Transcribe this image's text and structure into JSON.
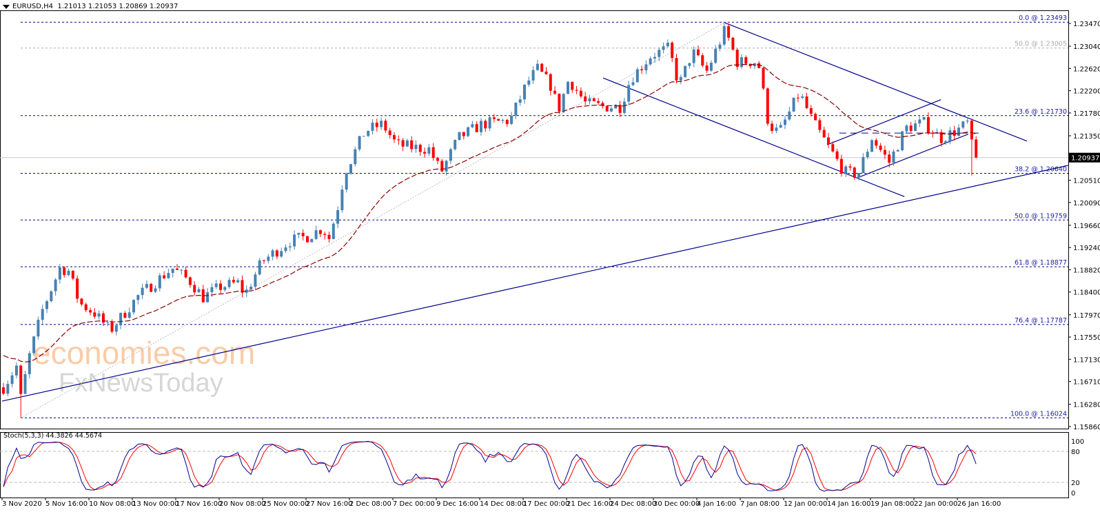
{
  "header": {
    "symbol": "EURUSD,H4",
    "ohlc": "1.21013 1.21053 1.20869 1.20937"
  },
  "stoch_label": "Stoch(5,3,3) 44.3826 44.5674",
  "watermark": {
    "line1": "economies.com",
    "line2": "FxNewsToday"
  },
  "colors": {
    "up": "#4682b4",
    "down": "#ff0000",
    "ma": "#8b0000",
    "fib": "#00008b",
    "trend": "#00008b",
    "stoch_k": "#00008b",
    "stoch_d": "#ff0000",
    "price_line": "#c8c8c8"
  },
  "chart_data": {
    "type": "candlestick",
    "title": "EURUSD,H4",
    "bars": 225,
    "ylim": [
      1.1586,
      1.2347
    ],
    "price_ticks": [
      "1.23470",
      "1.23040",
      "1.22620",
      "1.22200",
      "1.21780",
      "1.21350",
      "1.20510",
      "1.20090",
      "1.19660",
      "1.19240",
      "1.18820",
      "1.18400",
      "1.17970",
      "1.17550",
      "1.17130",
      "1.16710",
      "1.16280",
      "1.15860"
    ],
    "current_price": "1.20937",
    "time_labels": [
      "3 Nov 2020",
      "5 Nov 16:00",
      "10 Nov 08:00",
      "13 Nov 00:00",
      "17 Nov 16:00",
      "20 Nov 08:00",
      "25 Nov 00:00",
      "27 Nov 16:00",
      "2 Dec 08:00",
      "7 Dec 00:00",
      "9 Dec 16:00",
      "14 Dec 08:00",
      "17 Dec 00:00",
      "21 Dec 16:00",
      "24 Dec 08:00",
      "30 Dec 00:00",
      "4 Jan 16:00",
      "7 Jan 08:00",
      "12 Jan 00:00",
      "14 Jan 16:00",
      "19 Jan 08:00",
      "22 Jan 00:00",
      "26 Jan 16:00"
    ],
    "close_waypoints": [
      [
        0,
        1.166
      ],
      [
        3,
        1.17
      ],
      [
        4,
        1.164
      ],
      [
        6,
        1.172
      ],
      [
        9,
        1.1806
      ],
      [
        13,
        1.1885
      ],
      [
        15,
        1.188
      ],
      [
        17.5,
        1.1819
      ],
      [
        21,
        1.18
      ],
      [
        24.6,
        1.1767
      ],
      [
        31,
        1.1832
      ],
      [
        38.9,
        1.1885
      ],
      [
        43,
        1.186
      ],
      [
        46,
        1.183
      ],
      [
        50,
        1.185
      ],
      [
        54,
        1.1857
      ],
      [
        55.6,
        1.1835
      ],
      [
        59.5,
        1.1897
      ],
      [
        65.9,
        1.1936
      ],
      [
        70,
        1.1945
      ],
      [
        73.8,
        1.1962
      ],
      [
        74.6,
        1.193
      ],
      [
        77,
        1.2001
      ],
      [
        78.6,
        1.2066
      ],
      [
        83.3,
        1.2144
      ],
      [
        87.3,
        1.2157
      ],
      [
        90.5,
        1.2118
      ],
      [
        95.2,
        1.2112
      ],
      [
        98,
        1.211
      ],
      [
        100.8,
        1.2066
      ],
      [
        104.8,
        1.2131
      ],
      [
        110.3,
        1.2157
      ],
      [
        116.7,
        1.2164
      ],
      [
        120.6,
        1.2235
      ],
      [
        123,
        1.2261
      ],
      [
        126.2,
        1.2228
      ],
      [
        127.8,
        1.2183
      ],
      [
        130.2,
        1.2242
      ],
      [
        134.1,
        1.2196
      ],
      [
        138,
        1.219
      ],
      [
        142.1,
        1.219
      ],
      [
        144.4,
        1.2242
      ],
      [
        149.2,
        1.2287
      ],
      [
        153.2,
        1.23
      ],
      [
        155.6,
        1.223
      ],
      [
        158.7,
        1.2294
      ],
      [
        161.9,
        1.2255
      ],
      [
        164.3,
        1.23
      ],
      [
        166.2,
        1.2335
      ],
      [
        169,
        1.2274
      ],
      [
        173.8,
        1.2275
      ],
      [
        176.2,
        1.2157
      ],
      [
        178.6,
        1.214
      ],
      [
        183.3,
        1.2216
      ],
      [
        186.5,
        1.216
      ],
      [
        189.7,
        1.2118
      ],
      [
        193.7,
        1.2066
      ],
      [
        196.8,
        1.2062
      ],
      [
        200,
        1.2131
      ],
      [
        204,
        1.2085
      ],
      [
        207.9,
        1.215
      ],
      [
        211.9,
        1.216
      ],
      [
        215.9,
        1.213
      ],
      [
        218.3,
        1.214
      ],
      [
        220.6,
        1.215
      ],
      [
        222.2,
        1.216
      ],
      [
        223.3,
        1.21
      ],
      [
        224,
        1.2101
      ],
      [
        224.6,
        1.2094
      ]
    ],
    "extreme_wicks": [
      [
        4,
        "low",
        1.16024
      ],
      [
        166,
        "high",
        1.23493
      ],
      [
        223,
        "low",
        1.206
      ]
    ],
    "fibonacci": [
      {
        "label": "0.0 @ 1.23493",
        "price": 1.23493,
        "muted": false
      },
      {
        "label": "50.0 @ 1.23005",
        "price": 1.23005,
        "muted": true
      },
      {
        "label": "23.6 @ 1.21730",
        "price": 1.2173,
        "muted": false
      },
      {
        "label": "38.2 @ 1.20640",
        "price": 1.2064,
        "muted": false
      },
      {
        "label": "50.0 @ 1.19759",
        "price": 1.19759,
        "muted": false
      },
      {
        "label": "61.8 @ 1.18877",
        "price": 1.18877,
        "muted": false
      },
      {
        "label": "76.4 @ 1.17787",
        "price": 1.17787,
        "muted": false
      },
      {
        "label": "100.0 @ 1.16024",
        "price": 1.16024,
        "muted": false
      }
    ],
    "trendlines": [
      {
        "name": "long-uptrend",
        "from": [
          -0.3,
          1.1634
        ],
        "to": [
          245.2,
          1.2079
        ],
        "style": "solid"
      },
      {
        "name": "down-channel-upper",
        "from": [
          166.2,
          1.2348
        ],
        "to": [
          235.7,
          1.2125
        ],
        "style": "solid"
      },
      {
        "name": "down-channel-lower",
        "from": [
          138.1,
          1.2244
        ],
        "to": [
          207.5,
          1.202
        ],
        "style": "solid"
      },
      {
        "name": "rising-channel-lower",
        "from": [
          196.8,
          1.2056
        ],
        "to": [
          222.2,
          1.2138
        ],
        "style": "solid"
      },
      {
        "name": "rising-channel-upper",
        "from": [
          189.7,
          1.2118
        ],
        "to": [
          215.9,
          1.2203
        ],
        "style": "solid"
      },
      {
        "name": "neckline",
        "from": [
          192.5,
          1.214
        ],
        "to": [
          225,
          1.214
        ],
        "style": "dashed"
      },
      {
        "name": "fib-diagonal",
        "from": [
          4,
          1.16024
        ],
        "to": [
          166.2,
          1.23493
        ],
        "style": "dotted"
      }
    ],
    "ma_period": 30,
    "stoch": {
      "k": 5,
      "d": 3,
      "slowing": 3,
      "levels": [
        20,
        80
      ],
      "ticks": [
        "100",
        "80",
        "20",
        "0"
      ]
    }
  }
}
